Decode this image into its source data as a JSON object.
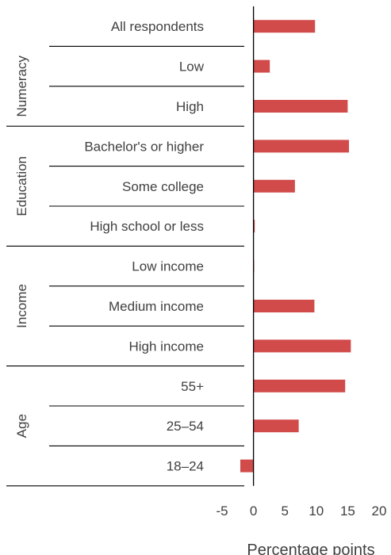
{
  "chart_data": {
    "type": "bar",
    "orientation": "horizontal",
    "xlabel": "Percentage points",
    "xlim": [
      -5,
      20
    ],
    "xticks": [
      -5,
      0,
      5,
      10,
      15,
      20
    ],
    "grid": false,
    "colors": {
      "bar": "#d24b4b",
      "axis": "#000000",
      "text": "#404040"
    },
    "groups": [
      {
        "label": "",
        "categories": [
          "All respondents"
        ]
      },
      {
        "label": "Numeracy",
        "categories": [
          "Low",
          "High"
        ]
      },
      {
        "label": "Education",
        "categories": [
          "Bachelor's or higher",
          "Some college",
          "High school or less"
        ]
      },
      {
        "label": "Income",
        "categories": [
          "Low income",
          "Medium income",
          "High income"
        ]
      },
      {
        "label": "Age",
        "categories": [
          "55+",
          "25–54",
          "18–24"
        ]
      }
    ],
    "categories": [
      "All respondents",
      "Low",
      "High",
      "Bachelor's or higher",
      "Some college",
      "High school or less",
      "Low income",
      "Medium income",
      "High income",
      "55+",
      "25–54",
      "18–24"
    ],
    "values": [
      9.8,
      2.6,
      15.0,
      15.2,
      6.6,
      0.2,
      0.1,
      9.7,
      15.5,
      14.6,
      7.2,
      -2.1
    ]
  }
}
